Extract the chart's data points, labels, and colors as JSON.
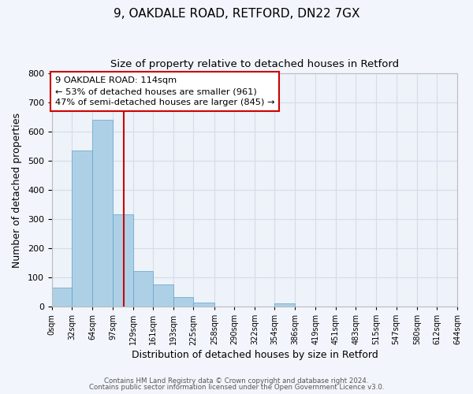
{
  "title1": "9, OAKDALE ROAD, RETFORD, DN22 7GX",
  "title2": "Size of property relative to detached houses in Retford",
  "xlabel": "Distribution of detached houses by size in Retford",
  "ylabel": "Number of detached properties",
  "bin_labels": [
    "0sqm",
    "32sqm",
    "64sqm",
    "97sqm",
    "129sqm",
    "161sqm",
    "193sqm",
    "225sqm",
    "258sqm",
    "290sqm",
    "322sqm",
    "354sqm",
    "386sqm",
    "419sqm",
    "451sqm",
    "483sqm",
    "515sqm",
    "547sqm",
    "580sqm",
    "612sqm",
    "644sqm"
  ],
  "bin_edges": [
    0,
    32,
    64,
    97,
    129,
    161,
    193,
    225,
    258,
    290,
    322,
    354,
    386,
    419,
    451,
    483,
    515,
    547,
    580,
    612,
    644
  ],
  "bar_heights": [
    65,
    537,
    641,
    317,
    121,
    75,
    32,
    13,
    0,
    0,
    0,
    10,
    0,
    0,
    0,
    0,
    0,
    0,
    0,
    0
  ],
  "bar_color": "#aed0e6",
  "bar_edge_color": "#5ba3c9",
  "property_line_x": 114,
  "property_line_color": "#cc0000",
  "annotation_text": "9 OAKDALE ROAD: 114sqm\n← 53% of detached houses are smaller (961)\n47% of semi-detached houses are larger (845) →",
  "annotation_box_color": "#ffffff",
  "annotation_box_edge_color": "#cc0000",
  "ylim": [
    0,
    800
  ],
  "yticks": [
    0,
    100,
    200,
    300,
    400,
    500,
    600,
    700,
    800
  ],
  "grid_color": "#d4dde8",
  "background_color": "#f2f5fb",
  "plot_bg_color": "#eef2f9",
  "footer1": "Contains HM Land Registry data © Crown copyright and database right 2024.",
  "footer2": "Contains public sector information licensed under the Open Government Licence v3.0."
}
